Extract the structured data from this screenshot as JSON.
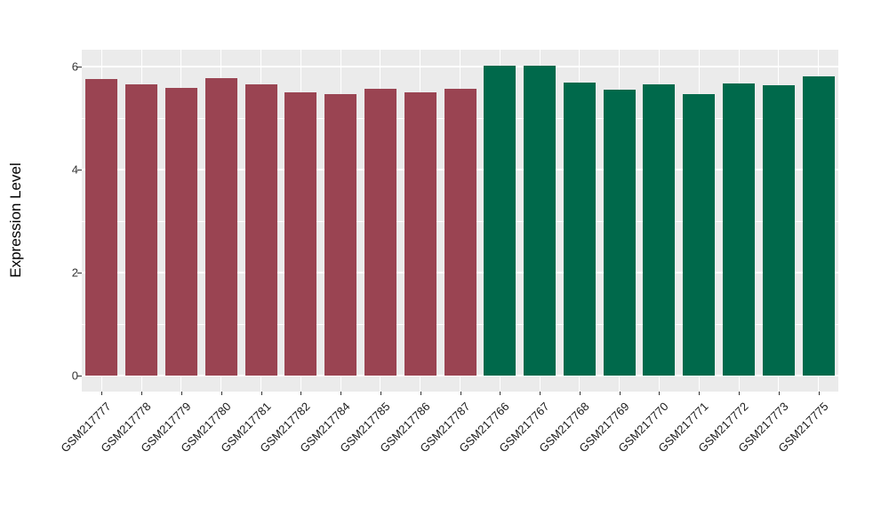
{
  "figure": {
    "background_color": "#ffffff",
    "panel_background_color": "#EBEBEB",
    "gridline_color": "#ffffff",
    "tick_color": "#333333"
  },
  "axis": {
    "y_title": "Expression Level",
    "y_tick_labels": [
      "0",
      "2",
      "4",
      "6"
    ]
  },
  "chart_data": {
    "type": "bar",
    "title": "",
    "xlabel": "",
    "ylabel": "Expression Level",
    "ylim": [
      0,
      6.33
    ],
    "yticks": [
      0,
      2,
      4,
      6
    ],
    "yticks_minor": [
      1,
      3,
      5
    ],
    "grid": true,
    "legend": "none",
    "x_label_rotation_deg": 45,
    "categories": [
      "GSM217777",
      "GSM217778",
      "GSM217779",
      "GSM217780",
      "GSM217781",
      "GSM217782",
      "GSM217784",
      "GSM217785",
      "GSM217786",
      "GSM217787",
      "GSM217766",
      "GSM217767",
      "GSM217768",
      "GSM217769",
      "GSM217770",
      "GSM217771",
      "GSM217772",
      "GSM217773",
      "GSM217775"
    ],
    "values": [
      5.76,
      5.66,
      5.58,
      5.78,
      5.66,
      5.5,
      5.46,
      5.57,
      5.5,
      5.57,
      6.01,
      6.01,
      5.69,
      5.55,
      5.66,
      5.47,
      5.68,
      5.63,
      5.81
    ],
    "groups": [
      "group1",
      "group1",
      "group1",
      "group1",
      "group1",
      "group1",
      "group1",
      "group1",
      "group1",
      "group1",
      "group2",
      "group2",
      "group2",
      "group2",
      "group2",
      "group2",
      "group2",
      "group2",
      "group2"
    ],
    "group_colors": {
      "group1": "#9A4452",
      "group2": "#00694B"
    }
  }
}
